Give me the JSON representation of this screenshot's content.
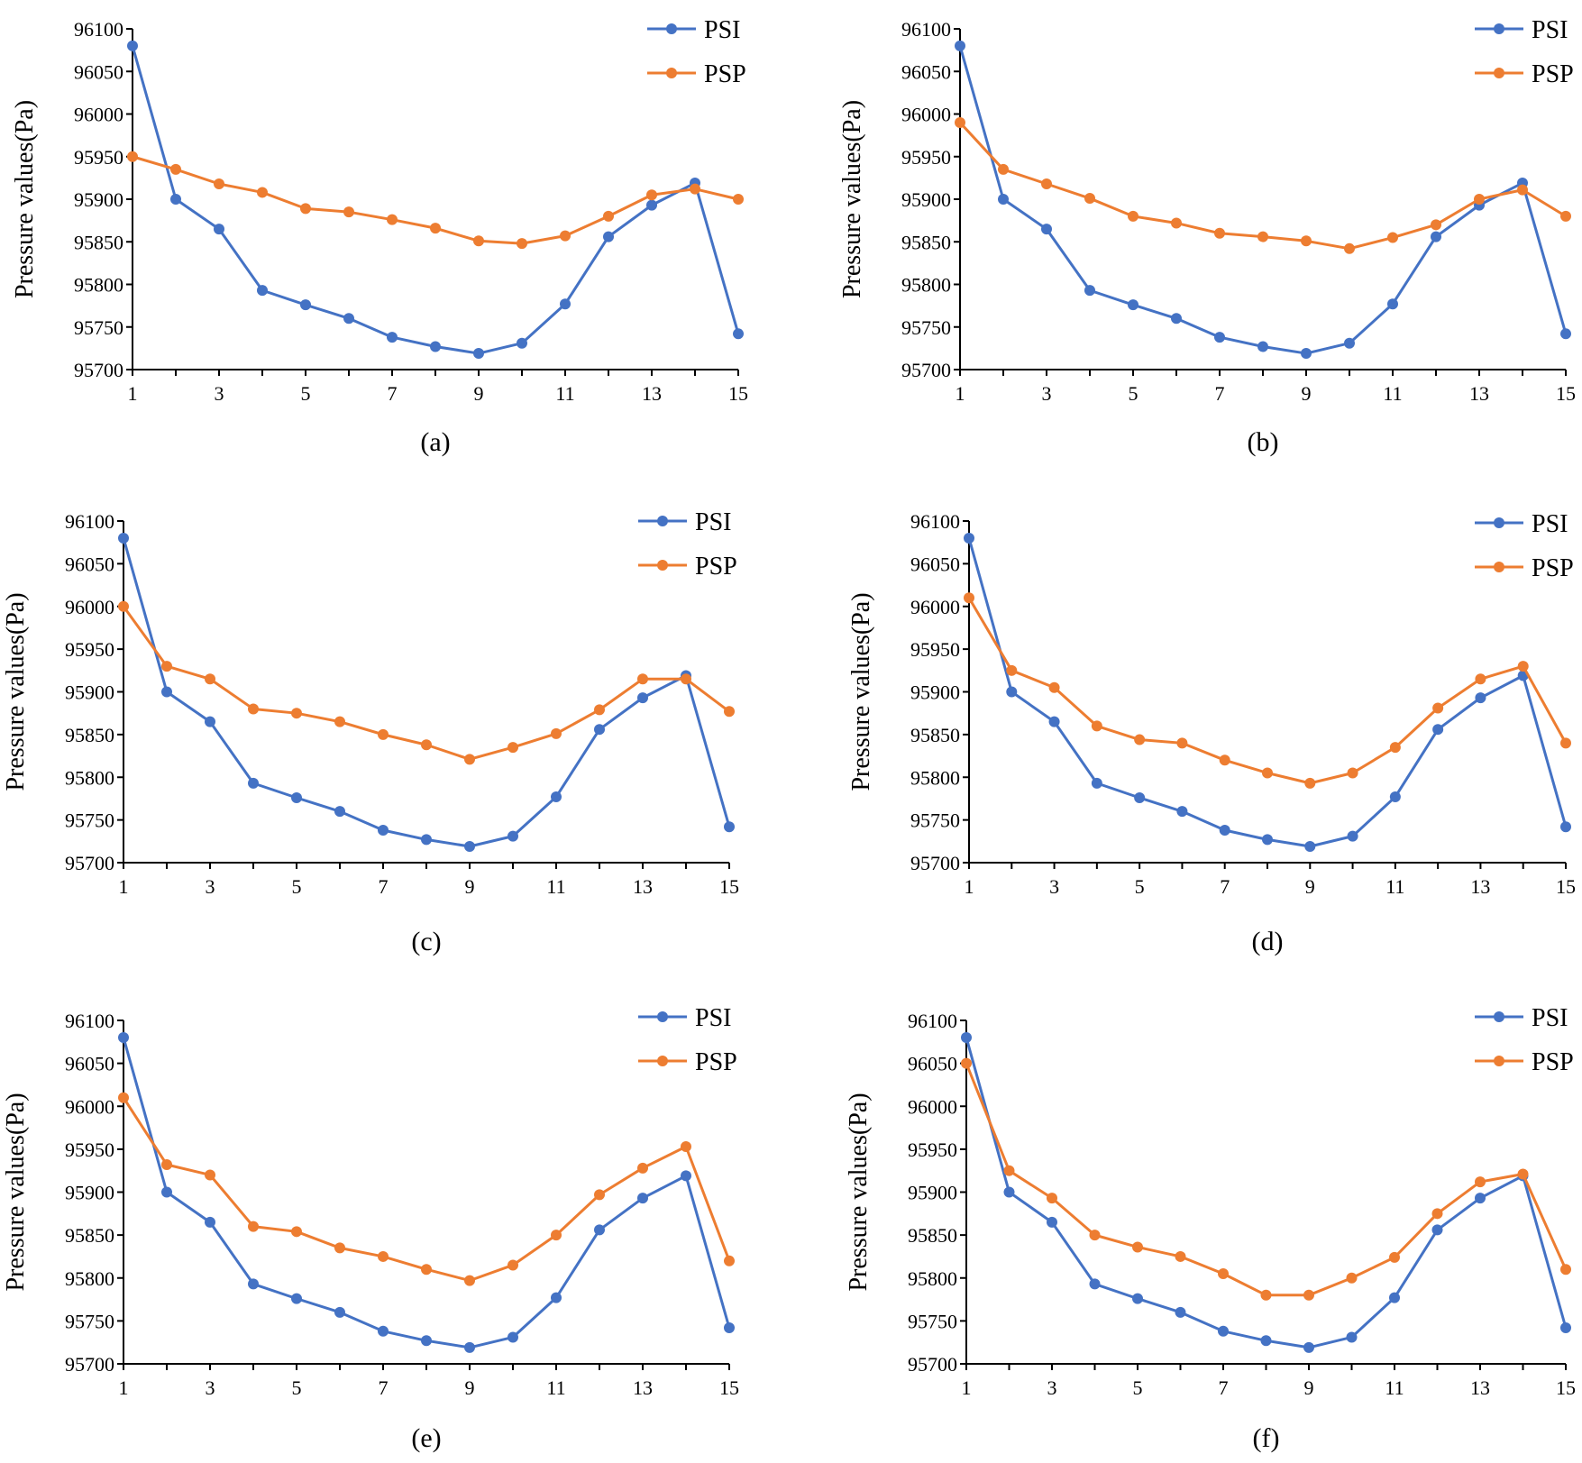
{
  "chart_data": [
    {
      "type": "line",
      "caption": "(a)",
      "ylabel": "Pressure values(Pa)",
      "xlabel": "",
      "x": [
        1,
        2,
        3,
        4,
        5,
        6,
        7,
        8,
        9,
        10,
        11,
        12,
        13,
        14,
        15
      ],
      "xticks": [
        "1",
        "3",
        "5",
        "7",
        "9",
        "11",
        "13",
        "15"
      ],
      "xlim": [
        1,
        15
      ],
      "ylim": [
        95700,
        96100
      ],
      "yticks": [
        "95700",
        "95750",
        "95800",
        "95850",
        "95900",
        "95950",
        "96000",
        "96050",
        "96100"
      ],
      "grid": false,
      "legend_position": "top-right",
      "series": [
        {
          "name": "PSI",
          "color": "#4472C4",
          "values": [
            96080,
            95900,
            95865,
            95793,
            95776,
            95760,
            95738,
            95727,
            95719,
            95731,
            95777,
            95856,
            95893,
            95919,
            95742
          ]
        },
        {
          "name": "PSP",
          "color": "#ED7D31",
          "values": [
            95950,
            95935,
            95918,
            95908,
            95889,
            95885,
            95876,
            95866,
            95851,
            95848,
            95857,
            95880,
            95905,
            95912,
            95900
          ]
        }
      ]
    },
    {
      "type": "line",
      "caption": "(b)",
      "ylabel": "Pressure values(Pa)",
      "xlabel": "",
      "x": [
        1,
        2,
        3,
        4,
        5,
        6,
        7,
        8,
        9,
        10,
        11,
        12,
        13,
        14,
        15
      ],
      "xticks": [
        "1",
        "3",
        "5",
        "7",
        "9",
        "11",
        "13",
        "15"
      ],
      "xlim": [
        1,
        15
      ],
      "ylim": [
        95700,
        96100
      ],
      "yticks": [
        "95700",
        "95750",
        "95800",
        "95850",
        "95900",
        "95950",
        "96000",
        "96050",
        "96100"
      ],
      "grid": false,
      "legend_position": "top-right",
      "series": [
        {
          "name": "PSI",
          "color": "#4472C4",
          "values": [
            96080,
            95900,
            95865,
            95793,
            95776,
            95760,
            95738,
            95727,
            95719,
            95731,
            95777,
            95856,
            95893,
            95919,
            95742
          ]
        },
        {
          "name": "PSP",
          "color": "#ED7D31",
          "values": [
            95990,
            95935,
            95918,
            95901,
            95880,
            95872,
            95860,
            95856,
            95851,
            95842,
            95855,
            95870,
            95900,
            95911,
            95880
          ]
        }
      ]
    },
    {
      "type": "line",
      "caption": "(c)",
      "ylabel": "Pressure values(Pa)",
      "xlabel": "",
      "x": [
        1,
        2,
        3,
        4,
        5,
        6,
        7,
        8,
        9,
        10,
        11,
        12,
        13,
        14,
        15
      ],
      "xticks": [
        "1",
        "3",
        "5",
        "7",
        "9",
        "11",
        "13",
        "15"
      ],
      "xlim": [
        1,
        15
      ],
      "ylim": [
        95700,
        96100
      ],
      "yticks": [
        "95700",
        "95750",
        "95800",
        "95850",
        "95900",
        "95950",
        "96000",
        "96050",
        "96100"
      ],
      "grid": false,
      "legend_position": "top-right",
      "series": [
        {
          "name": "PSI",
          "color": "#4472C4",
          "values": [
            96080,
            95900,
            95865,
            95793,
            95776,
            95760,
            95738,
            95727,
            95719,
            95731,
            95777,
            95856,
            95893,
            95919,
            95742
          ]
        },
        {
          "name": "PSP",
          "color": "#ED7D31",
          "values": [
            96000,
            95930,
            95915,
            95880,
            95875,
            95865,
            95850,
            95838,
            95821,
            95835,
            95851,
            95879,
            95915,
            95915,
            95877
          ]
        }
      ]
    },
    {
      "type": "line",
      "caption": "(d)",
      "ylabel": "Pressure values(Pa)",
      "xlabel": "",
      "x": [
        1,
        2,
        3,
        4,
        5,
        6,
        7,
        8,
        9,
        10,
        11,
        12,
        13,
        14,
        15
      ],
      "xticks": [
        "1",
        "3",
        "5",
        "7",
        "9",
        "11",
        "13",
        "15"
      ],
      "xlim": [
        1,
        15
      ],
      "ylim": [
        95700,
        96100
      ],
      "yticks": [
        "95700",
        "95750",
        "95800",
        "95850",
        "95900",
        "95950",
        "96000",
        "96050",
        "96100"
      ],
      "grid": false,
      "legend_position": "top-right",
      "series": [
        {
          "name": "PSI",
          "color": "#4472C4",
          "values": [
            96080,
            95900,
            95865,
            95793,
            95776,
            95760,
            95738,
            95727,
            95719,
            95731,
            95777,
            95856,
            95893,
            95919,
            95742
          ]
        },
        {
          "name": "PSP",
          "color": "#ED7D31",
          "values": [
            96010,
            95925,
            95905,
            95860,
            95844,
            95840,
            95820,
            95805,
            95793,
            95805,
            95835,
            95881,
            95915,
            95930,
            95840
          ]
        }
      ]
    },
    {
      "type": "line",
      "caption": "(e)",
      "ylabel": "Pressure values(Pa)",
      "xlabel": "",
      "x": [
        1,
        2,
        3,
        4,
        5,
        6,
        7,
        8,
        9,
        10,
        11,
        12,
        13,
        14,
        15
      ],
      "xticks": [
        "1",
        "3",
        "5",
        "7",
        "9",
        "11",
        "13",
        "15"
      ],
      "xlim": [
        1,
        15
      ],
      "ylim": [
        95700,
        96100
      ],
      "yticks": [
        "95700",
        "95750",
        "95800",
        "95850",
        "95900",
        "95950",
        "96000",
        "96050",
        "96100"
      ],
      "grid": false,
      "legend_position": "top-right",
      "series": [
        {
          "name": "PSI",
          "color": "#4472C4",
          "values": [
            96080,
            95900,
            95865,
            95793,
            95776,
            95760,
            95738,
            95727,
            95719,
            95731,
            95777,
            95856,
            95893,
            95919,
            95742
          ]
        },
        {
          "name": "PSP",
          "color": "#ED7D31",
          "values": [
            96010,
            95932,
            95920,
            95860,
            95854,
            95835,
            95825,
            95810,
            95797,
            95815,
            95850,
            95897,
            95928,
            95953,
            95820
          ]
        }
      ]
    },
    {
      "type": "line",
      "caption": "(f)",
      "ylabel": "Pressure values(Pa)",
      "xlabel": "",
      "x": [
        1,
        2,
        3,
        4,
        5,
        6,
        7,
        8,
        9,
        10,
        11,
        12,
        13,
        14,
        15
      ],
      "xticks": [
        "1",
        "3",
        "5",
        "7",
        "9",
        "11",
        "13",
        "15"
      ],
      "xlim": [
        1,
        15
      ],
      "ylim": [
        95700,
        96100
      ],
      "yticks": [
        "95700",
        "95750",
        "95800",
        "95850",
        "95900",
        "95950",
        "96000",
        "96050",
        "96100"
      ],
      "grid": false,
      "legend_position": "top-right",
      "series": [
        {
          "name": "PSI",
          "color": "#4472C4",
          "values": [
            96080,
            95900,
            95865,
            95793,
            95776,
            95760,
            95738,
            95727,
            95719,
            95731,
            95777,
            95856,
            95893,
            95919,
            95742
          ]
        },
        {
          "name": "PSP",
          "color": "#ED7D31",
          "values": [
            96050,
            95925,
            95893,
            95850,
            95836,
            95825,
            95805,
            95780,
            95780,
            95800,
            95824,
            95875,
            95912,
            95921,
            95810
          ]
        }
      ]
    }
  ]
}
